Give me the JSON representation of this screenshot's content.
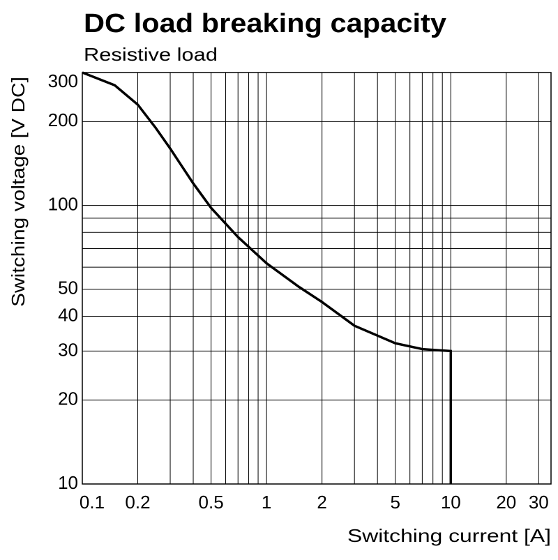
{
  "chart_data": {
    "type": "line",
    "title": "DC load breaking capacity",
    "subtitle": "Resistive load",
    "x_label": "Switching current [A]",
    "y_label": "Switching voltage [V DC]",
    "x_scale": "log",
    "y_scale": "log",
    "xlim": [
      0.1,
      35
    ],
    "ylim": [
      10,
      300
    ],
    "xticks": [
      0.1,
      0.2,
      0.5,
      1,
      2,
      5,
      10,
      20,
      30
    ],
    "yticks": [
      10,
      20,
      30,
      40,
      50,
      100,
      200,
      300
    ],
    "x_minor_grid": [
      0.3,
      0.4,
      0.6,
      0.7,
      0.8,
      0.9,
      3,
      4,
      6,
      7,
      8,
      9
    ],
    "y_minor_grid": [
      60,
      70,
      80,
      90
    ],
    "grid": true,
    "x": [
      0.1,
      0.15,
      0.2,
      0.25,
      0.3,
      0.4,
      0.5,
      0.7,
      1,
      1.5,
      2,
      3,
      5,
      7,
      10,
      10
    ],
    "series": [
      {
        "color": "#000000",
        "values": [
          300,
          270,
          230,
          190,
          160,
          120,
          98,
          77,
          62,
          51,
          45,
          37,
          32,
          30.5,
          30,
          10
        ]
      }
    ]
  }
}
